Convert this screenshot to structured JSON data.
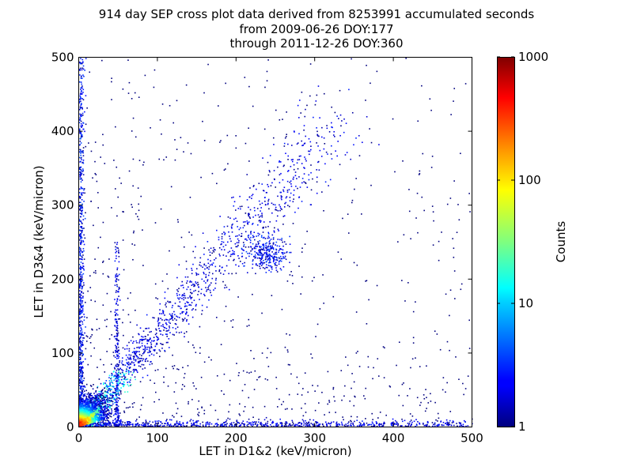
{
  "chart_data": {
    "type": "heatmap",
    "title_lines": [
      "914 day SEP cross plot data derived from 8253991 accumulated seconds",
      "from 2009-06-26 DOY:177",
      "through 2011-12-26 DOY:360"
    ],
    "xlabel": "LET in D1&2 (keV/micron)",
    "ylabel": "LET in D3&4 (keV/micron)",
    "xlim": [
      0,
      500
    ],
    "ylim": [
      0,
      500
    ],
    "xticks": [
      "0",
      "100",
      "200",
      "300",
      "400",
      "500"
    ],
    "yticks": [
      "0",
      "100",
      "200",
      "300",
      "400",
      "500"
    ],
    "colorbar": {
      "label": "Counts",
      "scale": "log",
      "range": [
        1,
        1000
      ],
      "ticks": [
        "1",
        "10",
        "100",
        "1000"
      ],
      "colormap": "jet"
    },
    "features": [
      {
        "name": "low-LET core",
        "x_range": [
          0,
          20
        ],
        "y_range": [
          0,
          20
        ],
        "counts_peak": 1000
      },
      {
        "name": "diagonal band",
        "from": [
          10,
          10
        ],
        "to": [
          330,
          420
        ],
        "counts_typical": 2
      },
      {
        "name": "cluster",
        "center": [
          240,
          235
        ],
        "counts_typical": 2
      },
      {
        "name": "y-axis streak",
        "x": 2,
        "y_range": [
          0,
          500
        ]
      },
      {
        "name": "x-axis streak",
        "y": 3,
        "x_range": [
          0,
          500
        ]
      },
      {
        "name": "vertical streak",
        "x": 48,
        "y_range": [
          0,
          250
        ]
      }
    ]
  }
}
